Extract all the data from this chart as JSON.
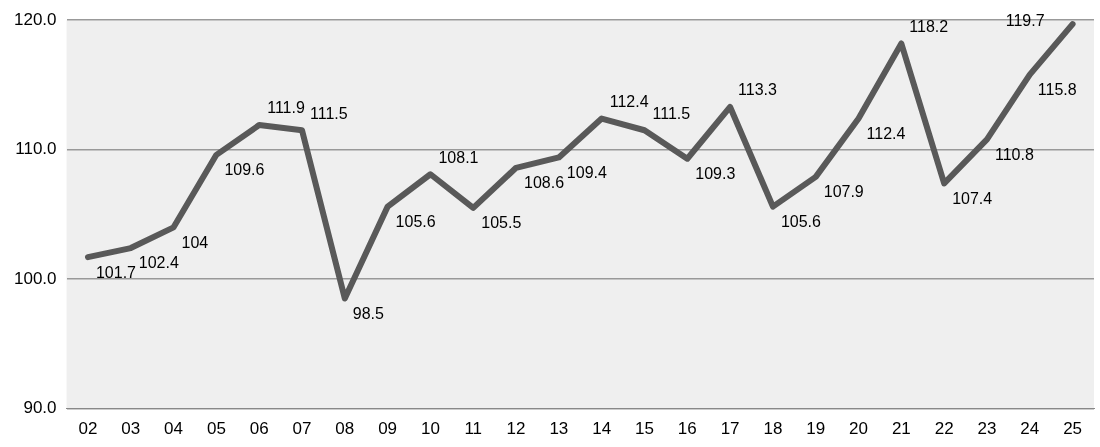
{
  "chart_data": {
    "type": "line",
    "categories": [
      "02",
      "03",
      "04",
      "05",
      "06",
      "07",
      "08",
      "09",
      "10",
      "11",
      "12",
      "13",
      "14",
      "15",
      "16",
      "17",
      "18",
      "19",
      "20",
      "21",
      "22",
      "23",
      "24",
      "25"
    ],
    "series": [
      {
        "color": "#595959",
        "values": [
          101.7,
          102.4,
          104,
          109.6,
          111.9,
          111.5,
          98.5,
          105.6,
          108.1,
          105.5,
          108.6,
          109.4,
          112.4,
          111.5,
          109.3,
          113.3,
          105.6,
          107.9,
          112.4,
          118.2,
          107.4,
          110.8,
          115.8,
          119.7
        ]
      }
    ],
    "ylim": [
      90,
      120
    ],
    "yticks": [
      {
        "value": 90,
        "label": "90.0"
      },
      {
        "value": 100,
        "label": "100.0"
      },
      {
        "value": 110,
        "label": "110.0"
      },
      {
        "value": 120,
        "label": "120.0"
      }
    ],
    "grid": "y",
    "legend": false,
    "marker": "none",
    "line_style": "solid",
    "data_labels": true
  }
}
